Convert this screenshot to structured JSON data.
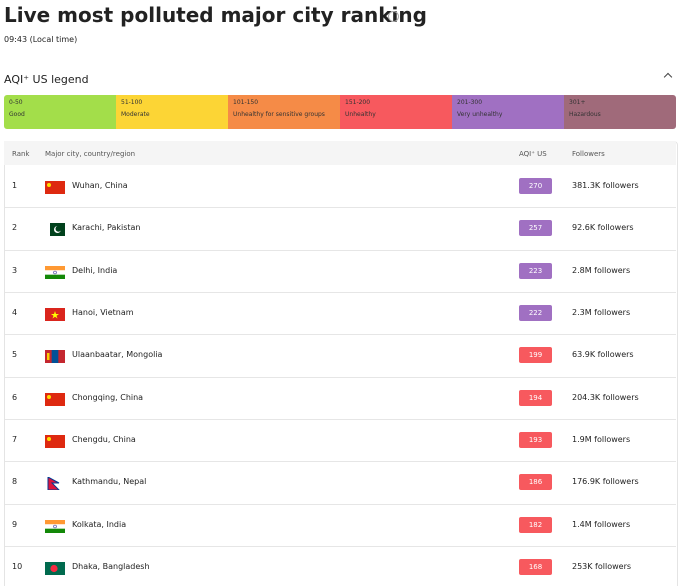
{
  "header": {
    "title": "Live most polluted major city ranking",
    "time": "09:43 (Local time)"
  },
  "legend": {
    "title": "AQI⁺ US legend",
    "levels": [
      {
        "range": "0-50",
        "label": "Good",
        "color": "#a3de4a"
      },
      {
        "range": "51-100",
        "label": "Moderate",
        "color": "#fcd535"
      },
      {
        "range": "101-150",
        "label": "Unhealthy for sensitive groups",
        "color": "#f58b47"
      },
      {
        "range": "151-200",
        "label": "Unhealthy",
        "color": "#f7595e"
      },
      {
        "range": "201-300",
        "label": "Very unhealthy",
        "color": "#a070c2"
      },
      {
        "range": "301+",
        "label": "Hazardous",
        "color": "#a06a7a"
      }
    ]
  },
  "table": {
    "columns": [
      "Rank",
      "Major city, country/region",
      "AQI⁺ US",
      "Followers"
    ],
    "rows": [
      {
        "rank": 1,
        "city": "Wuhan, China",
        "aqi": 270,
        "followers": "381.3K followers",
        "color": "#a070c2"
      },
      {
        "rank": 2,
        "city": "Karachi, Pakistan",
        "aqi": 257,
        "followers": "92.6K followers",
        "color": "#a070c2"
      },
      {
        "rank": 3,
        "city": "Delhi, India",
        "aqi": 223,
        "followers": "2.8M followers",
        "color": "#a070c2"
      },
      {
        "rank": 4,
        "city": "Hanoi, Vietnam",
        "aqi": 222,
        "followers": "2.3M followers",
        "color": "#a070c2"
      },
      {
        "rank": 5,
        "city": "Ulaanbaatar, Mongolia",
        "aqi": 199,
        "followers": "63.9K followers",
        "color": "#f7595e"
      },
      {
        "rank": 6,
        "city": "Chongqing, China",
        "aqi": 194,
        "followers": "204.3K followers",
        "color": "#f7595e"
      },
      {
        "rank": 7,
        "city": "Chengdu, China",
        "aqi": 193,
        "followers": "1.9M followers",
        "color": "#f7595e"
      },
      {
        "rank": 8,
        "city": "Kathmandu, Nepal",
        "aqi": 186,
        "followers": "176.9K followers",
        "color": "#f7595e"
      },
      {
        "rank": 9,
        "city": "Kolkata, India",
        "aqi": 182,
        "followers": "1.4M followers",
        "color": "#f7595e"
      },
      {
        "rank": 10,
        "city": "Dhaka, Bangladesh",
        "aqi": 168,
        "followers": "253K followers",
        "color": "#f7595e"
      }
    ]
  }
}
